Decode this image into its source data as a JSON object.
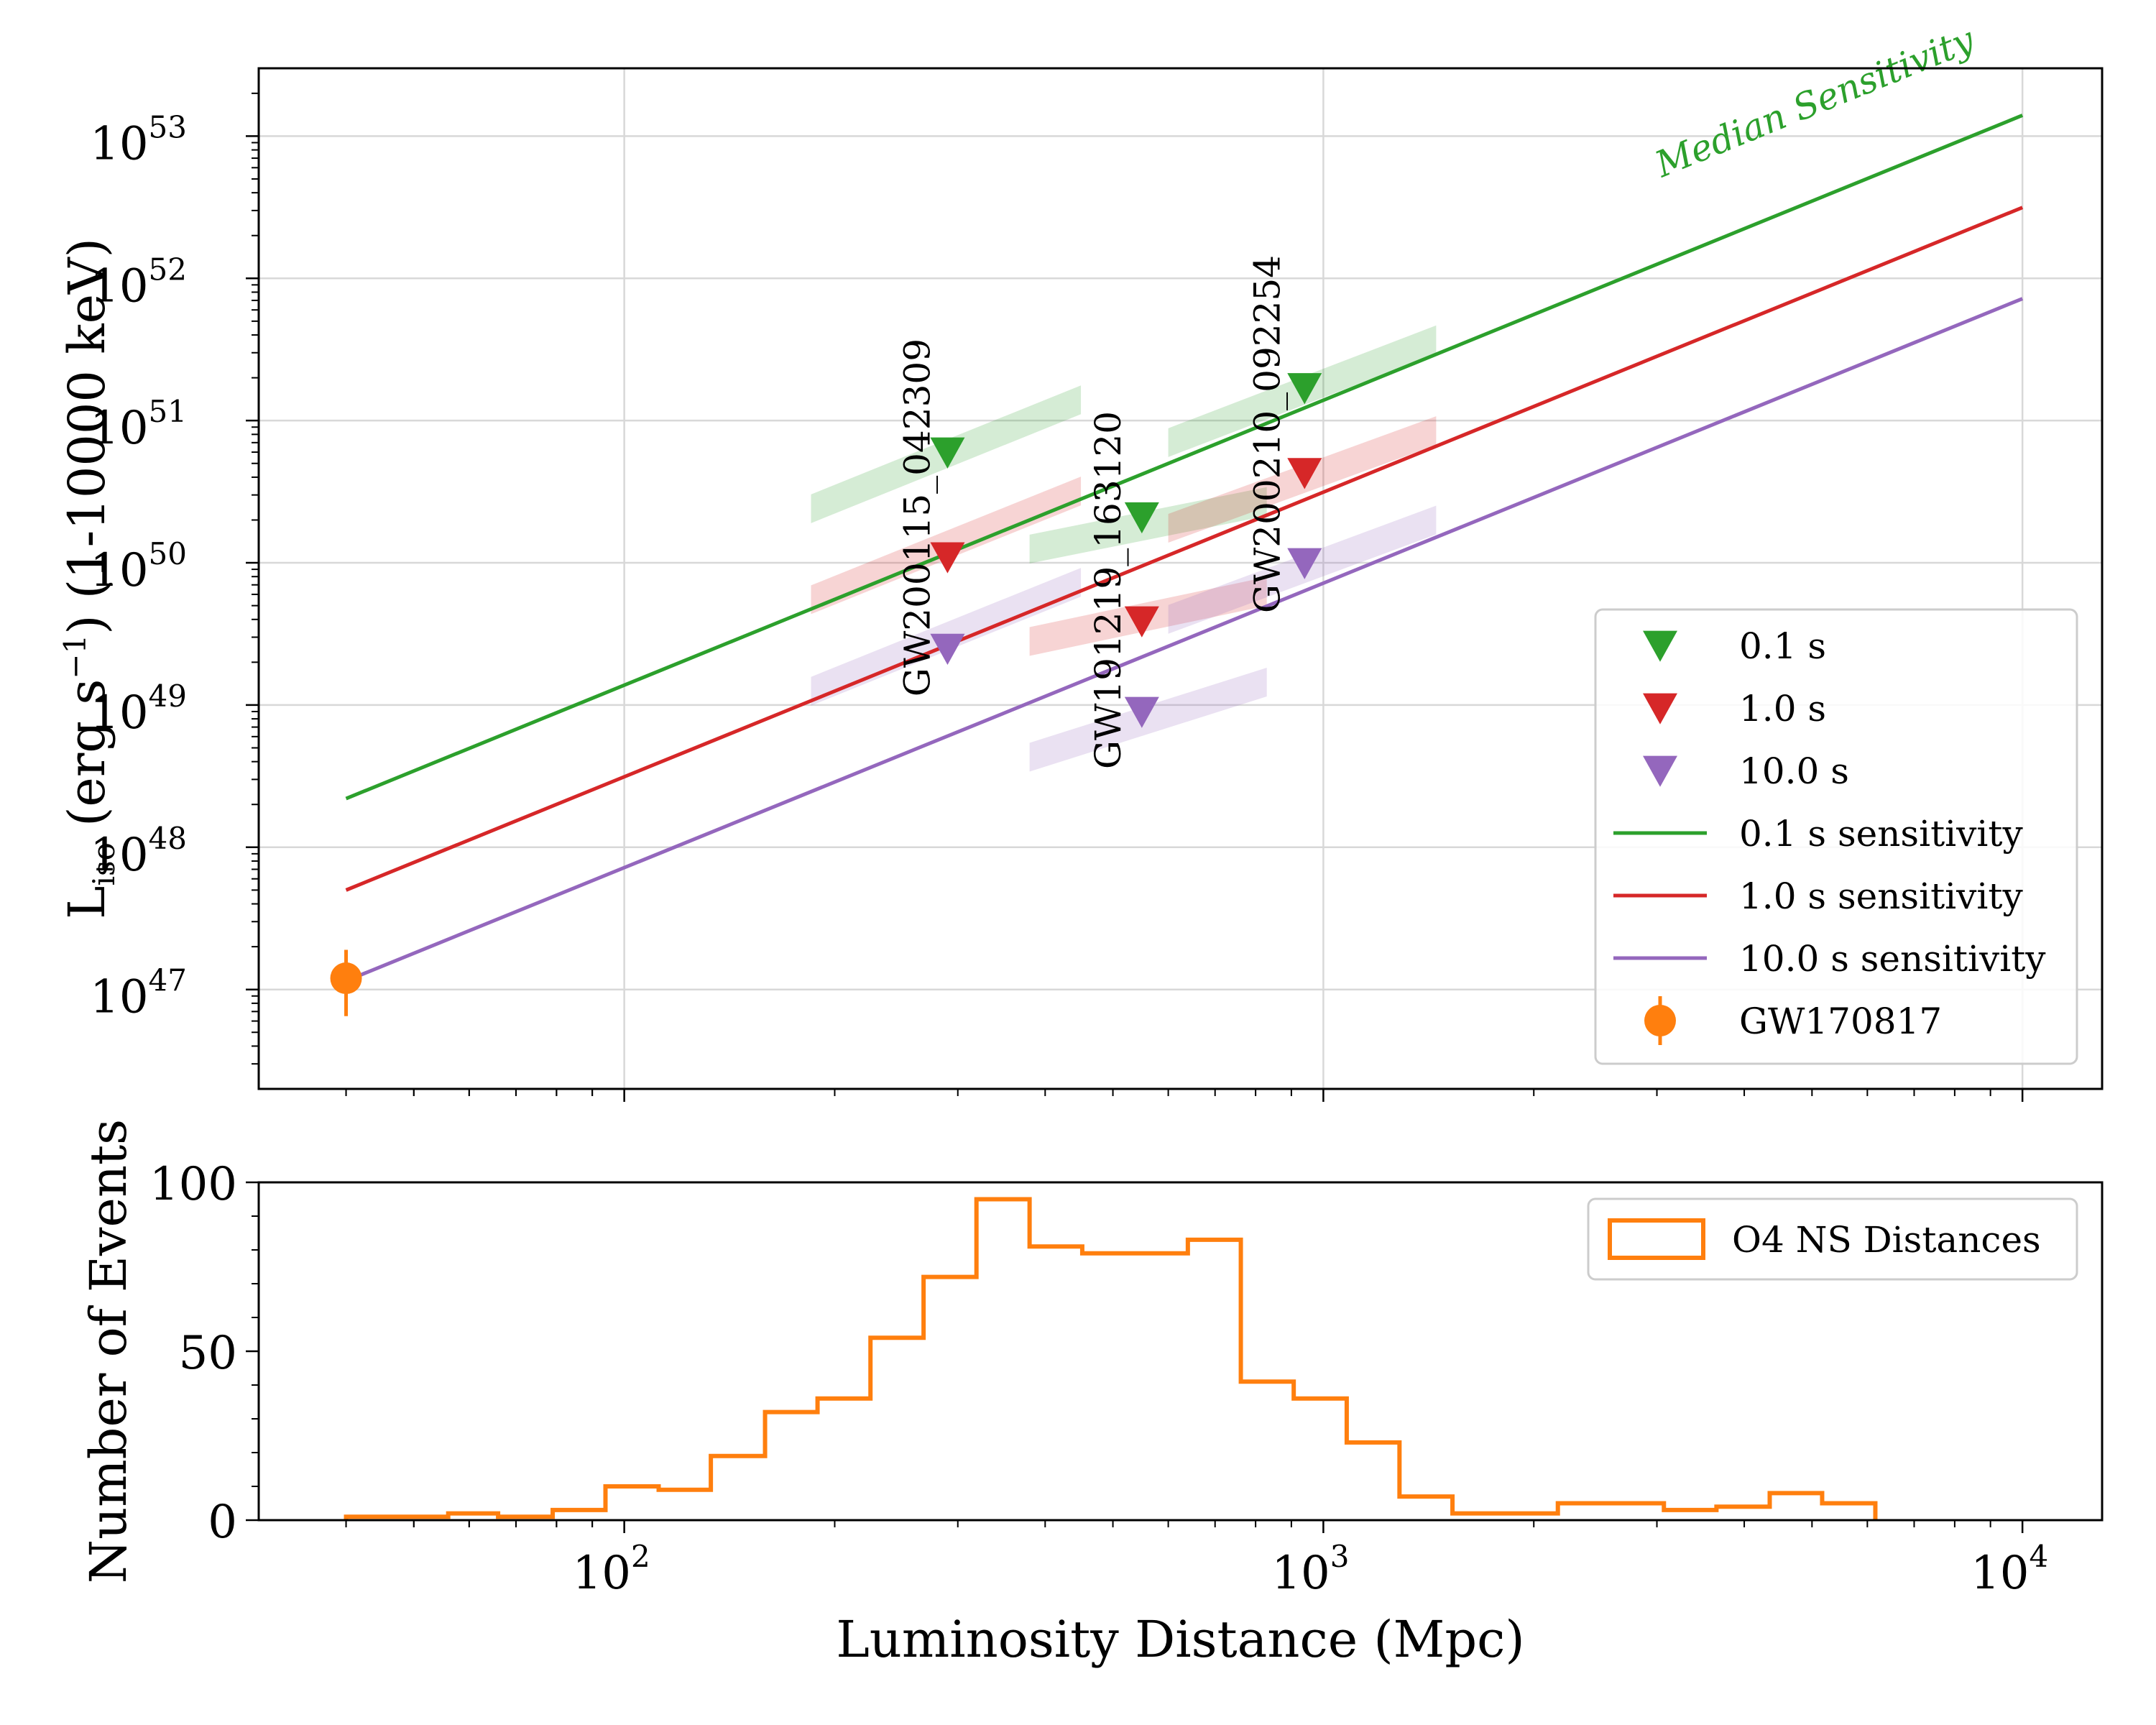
{
  "chart_data": [
    {
      "type": "scatter",
      "title": "",
      "xscale": "log",
      "yscale": "log",
      "xlim": [
        30,
        13000
      ],
      "ylim": [
        2e+46,
        3e+53
      ],
      "grid": true,
      "ylabel": {
        "main": "L",
        "sub": "iso",
        "rest": " (erg s",
        "sup": "−1",
        "tail": ") (1-10000 keV)"
      },
      "yticks": [
        {
          "value": 1e+47,
          "base": "10",
          "exp": "47"
        },
        {
          "value": 1e+48,
          "base": "10",
          "exp": "48"
        },
        {
          "value": 1e+49,
          "base": "10",
          "exp": "49"
        },
        {
          "value": 1e+50,
          "base": "10",
          "exp": "50"
        },
        {
          "value": 1e+51,
          "base": "10",
          "exp": "51"
        },
        {
          "value": 1e+52,
          "base": "10",
          "exp": "52"
        },
        {
          "value": 1e+53,
          "base": "10",
          "exp": "53"
        }
      ],
      "colors": {
        "green": "#2ca02c",
        "red": "#d62728",
        "purple": "#9467bd",
        "orange": "#ff7f0e"
      },
      "sensitivity_lines": [
        {
          "name": "0.1 s sensitivity",
          "color": "#2ca02c",
          "x": [
            40,
            10000
          ],
          "y": [
            2.2e+48,
            1.4e+53
          ]
        },
        {
          "name": "1.0 s sensitivity",
          "color": "#d62728",
          "x": [
            40,
            10000
          ],
          "y": [
            5e+47,
            3.15e+52
          ]
        },
        {
          "name": "10.0 s sensitivity",
          "color": "#9467bd",
          "x": [
            40,
            10000
          ],
          "y": [
            1.15e+47,
            7.2e+51
          ]
        }
      ],
      "median_label": "Median Sensitivity",
      "events": [
        {
          "name": "GW200115_042309",
          "distance": 290,
          "band_x": [
            185,
            450
          ],
          "limits": [
            {
              "duration": "0.1 s",
              "color": "#2ca02c",
              "y": 6e+50,
              "band_y": [
                2.4e+50,
                1.4e+51
              ]
            },
            {
              "duration": "1.0 s",
              "color": "#d62728",
              "y": 1.1e+50,
              "band_y": [
                5.5e+49,
                3.2e+50
              ]
            },
            {
              "duration": "10.0 s",
              "color": "#9467bd",
              "y": 2.5e+49,
              "band_y": [
                1.25e+49,
                7.3e+49
              ]
            }
          ]
        },
        {
          "name": "GW191219_163120",
          "distance": 550,
          "band_x": [
            380,
            830
          ],
          "limits": [
            {
              "duration": "0.1 s",
              "color": "#2ca02c",
              "y": 2.1e+50,
              "band_y": [
                1.25e+50,
                2.7e+50
              ]
            },
            {
              "duration": "1.0 s",
              "color": "#d62728",
              "y": 3.9e+49,
              "band_y": [
                2.8e+49,
                6.3e+49
              ]
            },
            {
              "duration": "10.0 s",
              "color": "#9467bd",
              "y": 9e+48,
              "band_y": [
                4.3e+48,
                1.45e+49
              ]
            }
          ]
        },
        {
          "name": "GW200210_092254",
          "distance": 940,
          "band_x": [
            600,
            1450
          ],
          "limits": [
            {
              "duration": "0.1 s",
              "color": "#2ca02c",
              "y": 1.7e+51,
              "band_y": [
                7e+50,
                3.7e+51
              ]
            },
            {
              "duration": "1.0 s",
              "color": "#d62728",
              "y": 4.3e+50,
              "band_y": [
                1.75e+50,
                8.5e+50
              ]
            },
            {
              "duration": "10.0 s",
              "color": "#9467bd",
              "y": 1e+50,
              "band_y": [
                4e+49,
                2e+50
              ]
            }
          ]
        }
      ],
      "gw170817": {
        "name": "GW170817",
        "x": 40,
        "y": 1.2e+47,
        "yerr": [
          6.5e+46,
          1.9e+47
        ],
        "color": "#ff7f0e"
      },
      "legend": {
        "location": "lower right",
        "entries": [
          {
            "label": "0.1 s",
            "kind": "triangle",
            "color": "#2ca02c"
          },
          {
            "label": "1.0 s",
            "kind": "triangle",
            "color": "#d62728"
          },
          {
            "label": "10.0 s",
            "kind": "triangle",
            "color": "#9467bd"
          },
          {
            "label": "0.1 s sensitivity",
            "kind": "line",
            "color": "#2ca02c"
          },
          {
            "label": "1.0 s sensitivity",
            "kind": "line",
            "color": "#d62728"
          },
          {
            "label": "10.0 s sensitivity",
            "kind": "line",
            "color": "#9467bd"
          },
          {
            "label": "GW170817",
            "kind": "errpoint",
            "color": "#ff7f0e"
          }
        ]
      }
    },
    {
      "type": "histogram",
      "title": "",
      "xscale": "log",
      "xlim": [
        30,
        13000
      ],
      "ylim": [
        0,
        100
      ],
      "grid": false,
      "xlabel": "Luminosity Distance (Mpc)",
      "ylabel": "Number of Events",
      "xticks": [
        {
          "value": 100,
          "base": "10",
          "exp": "2"
        },
        {
          "value": 1000,
          "base": "10",
          "exp": "3"
        },
        {
          "value": 10000,
          "base": "10",
          "exp": "4"
        }
      ],
      "yticks": [
        {
          "value": 0,
          "label": "0"
        },
        {
          "value": 50,
          "label": "50"
        },
        {
          "value": 100,
          "label": "100"
        }
      ],
      "color": "#ff7f0e",
      "bin_edges": [
        40,
        47,
        56,
        66,
        79,
        94,
        112,
        133,
        159,
        189,
        225,
        268,
        319,
        380,
        452,
        538,
        640,
        762,
        907,
        1080,
        1285,
        1530,
        1820,
        2165,
        2580,
        3070,
        3650,
        4350,
        5170,
        6160
      ],
      "counts": [
        1,
        1,
        2,
        1,
        3,
        10,
        9,
        19,
        32,
        36,
        54,
        72,
        95,
        81,
        79,
        79,
        83,
        41,
        36,
        23,
        7,
        2,
        2,
        5,
        5,
        3,
        4,
        8,
        5
      ],
      "legend": {
        "location": "upper right",
        "entries": [
          {
            "label": "O4 NS Distances",
            "kind": "box",
            "color": "#ff7f0e"
          }
        ]
      }
    }
  ]
}
